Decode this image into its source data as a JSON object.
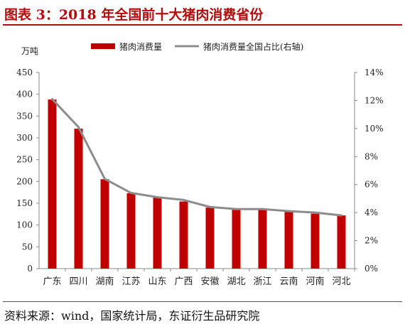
{
  "title": "图表 3：2018 年全国前十大猪肉消费省份",
  "source": "资料来源：wind，国家统计局，东证衍生品研究院",
  "colors": {
    "bar": "#c00000",
    "line": "#8c8c8c",
    "title": "#b40c0c"
  },
  "chart_data": {
    "type": "bar",
    "y_unit_label": "万吨",
    "categories": [
      "广东",
      "四川",
      "湖南",
      "江苏",
      "山东",
      "广西",
      "安徽",
      "湖北",
      "浙江",
      "云南",
      "河南",
      "河北"
    ],
    "series": [
      {
        "name": "猪肉消费量",
        "type": "bar",
        "axis": "left",
        "values": [
          388,
          321,
          205,
          173,
          163,
          154,
          140,
          135,
          135,
          130,
          126,
          122
        ]
      },
      {
        "name": "猪肉消费量全国占比(右轴)",
        "type": "line",
        "axis": "right",
        "values": [
          12.1,
          10.1,
          6.4,
          5.4,
          5.1,
          4.9,
          4.4,
          4.25,
          4.25,
          4.1,
          4.0,
          3.8
        ]
      }
    ],
    "y_left": {
      "min": 0,
      "max": 450,
      "ticks": [
        "0",
        "50",
        "100",
        "150",
        "200",
        "250",
        "300",
        "350",
        "400",
        "450"
      ]
    },
    "y_right": {
      "min": 0,
      "max": 14,
      "ticks": [
        "0%",
        "2%",
        "4%",
        "6%",
        "8%",
        "10%",
        "12%",
        "14%"
      ]
    },
    "legend_position": "top",
    "grid": false
  }
}
